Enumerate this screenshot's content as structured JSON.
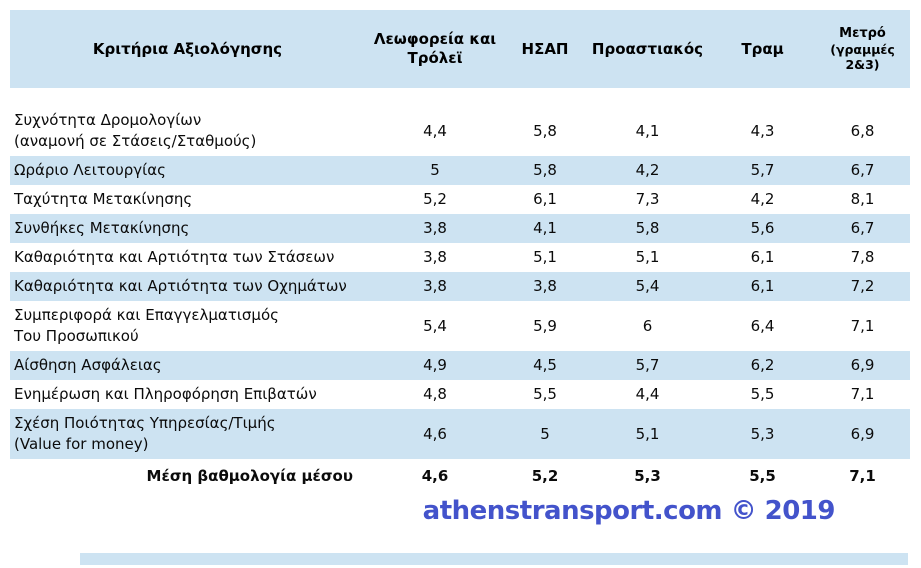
{
  "table": {
    "columns": [
      {
        "key": "criteria",
        "label": "Κριτήρια Αξιολόγησης"
      },
      {
        "key": "bus-trolley",
        "label": "Λεωφορεία και Τρόλεϊ"
      },
      {
        "key": "isap",
        "label": "ΗΣΑΠ"
      },
      {
        "key": "proastiakos",
        "label": "Προαστιακός"
      },
      {
        "key": "tram",
        "label": "Τραμ"
      },
      {
        "key": "metro",
        "label": "Μετρό",
        "sub": "(γραμμές 2&3)"
      }
    ],
    "rows": [
      {
        "label": "Συχνότητα Δρομολογίων",
        "sub": "(αναμονή σε Στάσεις/Σταθμούς)",
        "values": [
          "4,4",
          "5,8",
          "4,1",
          "4,3",
          "6,8"
        ],
        "shaded": false
      },
      {
        "label": "Ωράριο Λειτουργίας",
        "values": [
          "5",
          "5,8",
          "4,2",
          "5,7",
          "6,7"
        ],
        "shaded": true
      },
      {
        "label": "Ταχύτητα Μετακίνησης",
        "values": [
          "5,2",
          "6,1",
          "7,3",
          "4,2",
          "8,1"
        ],
        "shaded": false
      },
      {
        "label": "Συνθήκες Μετακίνησης",
        "values": [
          "3,8",
          "4,1",
          "5,8",
          "5,6",
          "6,7"
        ],
        "shaded": true
      },
      {
        "label": "Καθαριότητα και Αρτιότητα των Στάσεων",
        "values": [
          "3,8",
          "5,1",
          "5,1",
          "6,1",
          "7,8"
        ],
        "shaded": false
      },
      {
        "label": "Καθαριότητα και Αρτιότητα των Οχημάτων",
        "values": [
          "3,8",
          "3,8",
          "5,4",
          "6,1",
          "7,2"
        ],
        "shaded": true
      },
      {
        "label": "Συμπεριφορά και Επαγγελματισμός",
        "sub": "Του Προσωπικού",
        "values": [
          "5,4",
          "5,9",
          "6",
          "6,4",
          "7,1"
        ],
        "shaded": false
      },
      {
        "label": "Αίσθηση Ασφάλειας",
        "values": [
          "4,9",
          "4,5",
          "5,7",
          "6,2",
          "6,9"
        ],
        "shaded": true
      },
      {
        "label": "Ενημέρωση και Πληροφόρηση Επιβατών",
        "values": [
          "4,8",
          "5,5",
          "4,4",
          "5,5",
          "7,1"
        ],
        "shaded": false
      },
      {
        "label": "Σχέση Ποιότητας Υπηρεσίας/Τιμής",
        "sub": "(Value for money)",
        "values": [
          "4,6",
          "5",
          "5,1",
          "5,3",
          "6,9"
        ],
        "shaded": true
      }
    ],
    "footer": {
      "label": "Μέση βαθμολογία μέσου",
      "values": [
        "4,6",
        "5,2",
        "5,3",
        "5,5",
        "7,1"
      ]
    }
  },
  "watermark": {
    "text": "athenstransport.com © 2019",
    "color": "#4353cb"
  },
  "colors": {
    "band": "#cde3f2",
    "text": "#0b0b0b"
  },
  "chart_data": {
    "type": "table",
    "title": "Κριτήρια Αξιολόγησης ανά μέσο μεταφοράς",
    "columns": [
      "Κριτήρια Αξιολόγησης",
      "Λεωφορεία και Τρόλεϊ",
      "ΗΣΑΠ",
      "Προαστιακός",
      "Τραμ",
      "Μετρό (γραμμές 2&3)"
    ],
    "rows": [
      {
        "label": "Συχνότητα Δρομολογίων (αναμονή σε Στάσεις/Σταθμούς)",
        "values": [
          4.4,
          5.8,
          4.1,
          4.3,
          6.8
        ]
      },
      {
        "label": "Ωράριο Λειτουργίας",
        "values": [
          5,
          5.8,
          4.2,
          5.7,
          6.7
        ]
      },
      {
        "label": "Ταχύτητα Μετακίνησης",
        "values": [
          5.2,
          6.1,
          7.3,
          4.2,
          8.1
        ]
      },
      {
        "label": "Συνθήκες Μετακίνησης",
        "values": [
          3.8,
          4.1,
          5.8,
          5.6,
          6.7
        ]
      },
      {
        "label": "Καθαριότητα και Αρτιότητα των Στάσεων",
        "values": [
          3.8,
          5.1,
          5.1,
          6.1,
          7.8
        ]
      },
      {
        "label": "Καθαριότητα και Αρτιότητα των Οχημάτων",
        "values": [
          3.8,
          3.8,
          5.4,
          6.1,
          7.2
        ]
      },
      {
        "label": "Συμπεριφορά και Επαγγελματισμός Του Προσωπικού",
        "values": [
          5.4,
          5.9,
          6,
          6.4,
          7.1
        ]
      },
      {
        "label": "Αίσθηση Ασφάλειας",
        "values": [
          4.9,
          4.5,
          5.7,
          6.2,
          6.9
        ]
      },
      {
        "label": "Ενημέρωση και Πληροφόρηση Επιβατών",
        "values": [
          4.8,
          5.5,
          4.4,
          5.5,
          7.1
        ]
      },
      {
        "label": "Σχέση Ποιότητας Υπηρεσίας/Τιμής (Value for money)",
        "values": [
          4.6,
          5,
          5.1,
          5.3,
          6.9
        ]
      }
    ],
    "footer": {
      "label": "Μέση βαθμολογία μέσου",
      "values": [
        4.6,
        5.2,
        5.3,
        5.5,
        7.1
      ]
    }
  }
}
